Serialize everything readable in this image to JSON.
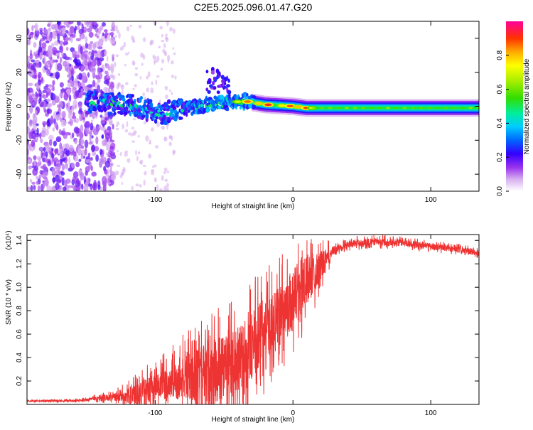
{
  "figure": {
    "title": "C2E5.2025.096.01.47.G20"
  },
  "chart_data": [
    {
      "type": "heatmap",
      "title": "C2E5.2025.096.01.47.G20",
      "xlabel": "Height of straight line (km)",
      "ylabel": "Frequency (Hz)",
      "xlim": [
        -193,
        135
      ],
      "ylim": [
        -50,
        50
      ],
      "xticks": [
        -100,
        0,
        100
      ],
      "yticks": [
        -40,
        -20,
        0,
        20,
        40
      ],
      "colorbar": {
        "label": "Normalized spectral amplitude",
        "range": [
          0,
          1
        ],
        "ticks": [
          "0.0",
          "0.2",
          "0.4",
          "0.6",
          "0.8"
        ]
      },
      "features": {
        "noise_band_x": [
          -193,
          -130
        ],
        "ridge_center_hz": [
          {
            "x": -145,
            "f": 2
          },
          {
            "x": -120,
            "f": 1
          },
          {
            "x": -95,
            "f": -4
          },
          {
            "x": -70,
            "f": 0
          },
          {
            "x": -50,
            "f": 2
          },
          {
            "x": -35,
            "f": 3
          },
          {
            "x": -20,
            "f": 1
          },
          {
            "x": 0,
            "f": 0
          },
          {
            "x": 10,
            "f": -1
          },
          {
            "x": 60,
            "f": -1
          },
          {
            "x": 135,
            "f": -1
          }
        ],
        "high_amp_x": [
          -40,
          15
        ],
        "side_blob": {
          "x": -55,
          "f": 15
        }
      }
    },
    {
      "type": "line",
      "xlabel": "Height of straight line (km)",
      "ylabel": "SNR (10 * v/v)",
      "ymultiplier": "(x10⁴)",
      "xlim": [
        -193,
        135
      ],
      "ylim": [
        0,
        1.45
      ],
      "xticks": [
        -100,
        0,
        100
      ],
      "yticks": [
        0.2,
        0.4,
        0.6,
        0.8,
        1.0,
        1.2,
        1.4
      ],
      "series": [
        {
          "name": "SNR",
          "color": "#ee3333",
          "baseline": [
            [
              -193,
              0.03
            ],
            [
              -160,
              0.03
            ],
            [
              -145,
              0.05
            ],
            [
              -120,
              0.07
            ],
            [
              -100,
              0.14
            ],
            [
              -80,
              0.22
            ],
            [
              -60,
              0.28
            ],
            [
              -45,
              0.33
            ],
            [
              -35,
              0.4
            ],
            [
              -25,
              0.58
            ],
            [
              -10,
              0.75
            ],
            [
              0,
              0.92
            ],
            [
              10,
              1.05
            ],
            [
              20,
              1.18
            ],
            [
              30,
              1.32
            ],
            [
              40,
              1.37
            ],
            [
              60,
              1.39
            ],
            [
              80,
              1.38
            ],
            [
              100,
              1.35
            ],
            [
              120,
              1.32
            ],
            [
              135,
              1.29
            ]
          ],
          "envelope": [
            [
              -193,
              0.01
            ],
            [
              -150,
              0.02
            ],
            [
              -130,
              0.06
            ],
            [
              -110,
              0.2
            ],
            [
              -90,
              0.3
            ],
            [
              -70,
              0.45
            ],
            [
              -55,
              0.55
            ],
            [
              -40,
              0.6
            ],
            [
              -25,
              0.55
            ],
            [
              -10,
              0.5
            ],
            [
              5,
              0.5
            ],
            [
              20,
              0.25
            ],
            [
              30,
              0.06
            ],
            [
              60,
              0.06
            ],
            [
              135,
              0.05
            ]
          ]
        }
      ]
    }
  ]
}
